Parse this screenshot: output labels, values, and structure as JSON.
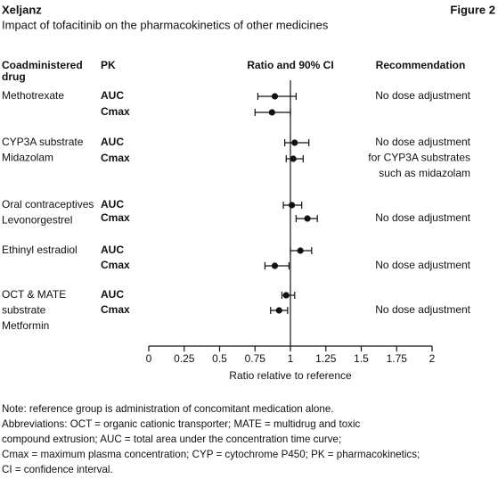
{
  "chart_data": {
    "type": "forest",
    "brand": "Xeljanz",
    "figure": "Figure 2",
    "title": "Impact of tofacitinib on the pharmacokinetics of other medicines",
    "headers": {
      "drug": [
        "Coadministered",
        "drug"
      ],
      "pk": "PK",
      "ratio": "Ratio and 90% CI",
      "recommendation": "Recommendation"
    },
    "groups": [
      {
        "drug": [
          "Methotrexate"
        ],
        "pk": [
          "AUC",
          "Cmax"
        ],
        "ratio": [
          0.89,
          0.87
        ],
        "ci_low": [
          0.77,
          0.75
        ],
        "ci_high": [
          1.04,
          1.0
        ],
        "recommendation": [
          "No dose adjustment"
        ]
      },
      {
        "drug": [
          "CYP3A substrate",
          "Midazolam"
        ],
        "pk": [
          "AUC",
          "Cmax"
        ],
        "ratio": [
          1.03,
          1.02
        ],
        "ci_low": [
          0.96,
          0.97
        ],
        "ci_high": [
          1.13,
          1.09
        ],
        "recommendation": [
          "No dose adjustment",
          "for CYP3A substrates",
          "such as midazolam"
        ]
      },
      {
        "drug": [
          "Oral contraceptives",
          "Levonorgestrel"
        ],
        "pk": [
          "AUC",
          "Cmax"
        ],
        "ratio": [
          1.01,
          1.12
        ],
        "ci_low": [
          0.95,
          1.04
        ],
        "ci_high": [
          1.08,
          1.19
        ],
        "recommendation": [
          "No dose adjustment"
        ]
      },
      {
        "drug": [
          "Ethinyl estradiol"
        ],
        "pk": [
          "AUC",
          "Cmax"
        ],
        "ratio": [
          1.07,
          0.89
        ],
        "ci_low": [
          1.0,
          0.82
        ],
        "ci_high": [
          1.15,
          0.99
        ],
        "recommendation": [
          "No dose adjustment"
        ]
      },
      {
        "drug": [
          "OCT & MATE",
          "substrate",
          "Metformin"
        ],
        "pk": [
          "AUC",
          "Cmax"
        ],
        "ratio": [
          0.97,
          0.92
        ],
        "ci_low": [
          0.94,
          0.86
        ],
        "ci_high": [
          1.03,
          0.98
        ],
        "recommendation": [
          "No dose adjustment"
        ]
      }
    ],
    "reference_line": 1,
    "xlim": [
      0,
      2
    ],
    "xticks": [
      0,
      0.25,
      0.5,
      0.75,
      1,
      1.25,
      1.5,
      1.75,
      2
    ],
    "xlabel": "Ratio relative to reference",
    "notes": [
      "Note: reference group is administration of concomitant medication alone.",
      "Abbreviations: OCT = organic cationic transporter; MATE = multidrug and toxic",
      "compound extrusion; AUC = total area under the concentration time curve;",
      "Cmax = maximum plasma concentration; CYP = cytochrome P450; PK = pharmacokinetics;",
      "CI = confidence interval."
    ]
  }
}
